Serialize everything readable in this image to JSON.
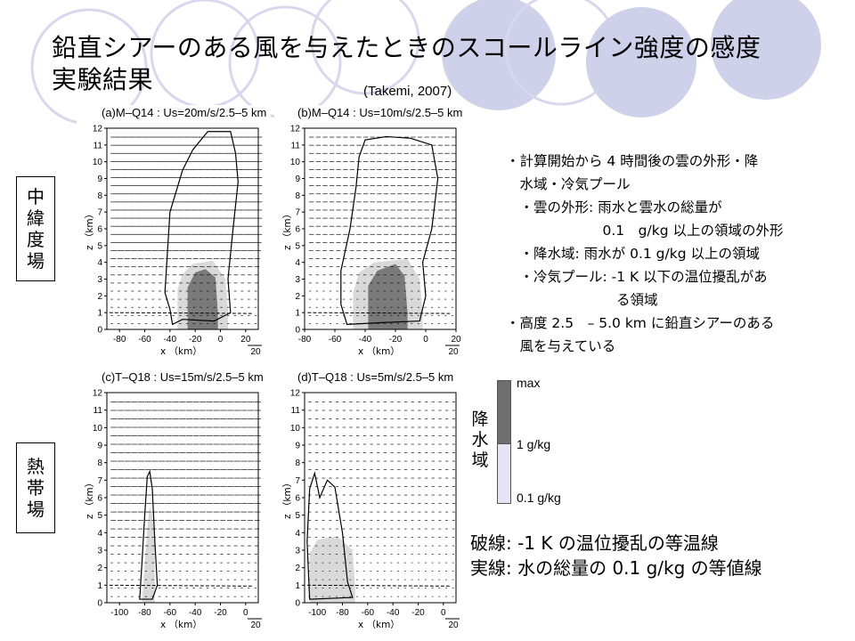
{
  "slide": {
    "title_line1": "鉛直シアーのある風を与えたときのスコールライン強度の感度",
    "title_line2": "実験結果",
    "reference": "(Takemi, 2007)"
  },
  "region_labels": {
    "midlatitude": [
      "中",
      "緯",
      "度",
      "場"
    ],
    "tropical": [
      "熱",
      "帯",
      "場"
    ]
  },
  "panels": [
    {
      "title": "(a)M–Q14 : Us=20m/s/2.5–5 km",
      "x_ticks": [
        "-80",
        "-60",
        "-40",
        "-20",
        "0",
        "20"
      ],
      "y_ticks": [
        "0",
        "1",
        "2",
        "3",
        "4",
        "5",
        "6",
        "7",
        "8",
        "9",
        "10",
        "11",
        "12"
      ],
      "xlabel": "x （km）",
      "ylabel": "z （km）",
      "scale_label": "20"
    },
    {
      "title": "(b)M–Q14 : Us=10m/s/2.5–5 km",
      "x_ticks": [
        "-80",
        "-60",
        "-40",
        "-20",
        "0",
        "20"
      ],
      "y_ticks": [
        "0",
        "1",
        "2",
        "3",
        "4",
        "5",
        "6",
        "7",
        "8",
        "9",
        "10",
        "11",
        "12"
      ],
      "xlabel": "x （km）",
      "ylabel": "z （km）",
      "scale_label": "20"
    },
    {
      "title": "(c)T–Q18 : Us=15m/s/2.5–5 km",
      "x_ticks": [
        "-100",
        "-80",
        "-60",
        "-40",
        "-20",
        "0"
      ],
      "y_ticks": [
        "0",
        "1",
        "2",
        "3",
        "4",
        "5",
        "6",
        "7",
        "8",
        "9",
        "10",
        "11",
        "12"
      ],
      "xlabel": "x （km）",
      "ylabel": "z （km）",
      "scale_label": "20"
    },
    {
      "title": "(d)T–Q18 : Us=5m/s/2.5–5 km",
      "x_ticks": [
        "-100",
        "-80",
        "-60",
        "-40",
        "-20",
        "0"
      ],
      "y_ticks": [
        "0",
        "1",
        "2",
        "3",
        "4",
        "5",
        "6",
        "7",
        "8",
        "9",
        "10",
        "11",
        "12"
      ],
      "xlabel": "x （km）",
      "ylabel": "z （km）",
      "scale_label": "20"
    }
  ],
  "notes": [
    "・計算開始から 4 時間後の雲の外形・降",
    "　水域・冷気プール",
    "　・雲の外形: 雨水と雲水の総量が",
    "　　　　　　　0.1　g/kg 以上の領域の外形",
    "　・降水域: 雨水が 0.1 g/kg 以上の領域",
    "　・冷気プール: -1 K 以下の温位擾乱があ",
    "　　　　　　　　る領域",
    "・高度 2.5　– 5.0 km に鉛直シアーのある",
    "　風を与えている"
  ],
  "legend": {
    "title_chars": [
      "降",
      "水",
      "域"
    ],
    "max_label": "max",
    "mid_label": "1 g/kg",
    "min_label": "0.1 g/kg",
    "colors": {
      "dark": "#6e6e6e",
      "light": "#e4e4f4"
    }
  },
  "line_legend": {
    "dashed": "破線: -1 K の温位擾乱の等温線",
    "solid": "実線: 水の総量の 0.1 g/kg の等値線"
  },
  "theme": {
    "circle_color": "#cfd0ea"
  }
}
